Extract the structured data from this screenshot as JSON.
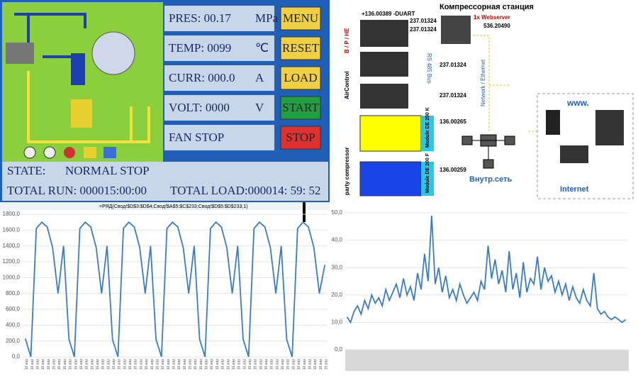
{
  "hmi": {
    "rows": [
      {
        "label": "PRES: 00.17",
        "unit": "MPa",
        "button": "MENU"
      },
      {
        "label": "TEMP: 0099",
        "unit": "℃",
        "button": "RESET"
      },
      {
        "label": "CURR: 000.0",
        "unit": "A",
        "button": "LOAD"
      },
      {
        "label": "VOLT: 0000",
        "unit": "V",
        "button": "START"
      },
      {
        "label": "FAN STOP",
        "button": "STOP"
      }
    ],
    "state_label": "STATE:",
    "state": "NORMAL STOP",
    "total_run": "TOTAL RUN: 000015:00:00",
    "total_load": "TOTAL LOAD:000014: 59: 52"
  },
  "diagram": {
    "title": "Компрессорная станция",
    "top_code": "+136.00389 -DUART",
    "codes": [
      "237.01324",
      "237.01324",
      "237.01324",
      "237.01324"
    ],
    "webserver": "1x Webserver",
    "webserver_code": "536.20490",
    "bus": "RS 485 Bus",
    "aircontrol": "AirControl",
    "bphe": "B / P / HE",
    "network": "Network / Ethernet",
    "modules": [
      {
        "code": "136.00265",
        "label": "Module DE 200 K"
      },
      {
        "code": "136.00259",
        "label": "Module DE 200 F"
      }
    ],
    "party": "party compressor",
    "lan": "Внутр.сеть",
    "www": "www.",
    "internet": "Internet"
  },
  "formula": "=РЯД(Свод!$D$3:$D$4;Свод!$A$5:$C$233;Свод!$D$5:$D$233;1)",
  "chart_data": [
    {
      "type": "line",
      "color": "#3a7cc4",
      "grid": true,
      "ylim": [
        0,
        1800
      ],
      "yticks": [
        {
          "value": 0,
          "label": "0,0"
        },
        {
          "value": 200,
          "label": "200,0"
        },
        {
          "value": 400,
          "label": "400,0"
        },
        {
          "value": 600,
          "label": "600,0"
        },
        {
          "value": 800,
          "label": "800,0"
        },
        {
          "value": 1000,
          "label": "1000,0"
        },
        {
          "value": 1200,
          "label": "1200,0"
        },
        {
          "value": 1400,
          "label": "1400,0"
        },
        {
          "value": 1600,
          "label": "1600,0"
        },
        {
          "value": 1800,
          "label": "1800,0"
        }
      ],
      "categories": [
        "16.апр",
        "16.апр",
        "16.апр",
        "16.апр",
        "16.апр",
        "16.апр",
        "16.апр",
        "16.апр",
        "16.апр",
        "16.апр",
        "16.апр",
        "16.апр",
        "16.апр",
        "16.апр",
        "16.апр",
        "16.апр",
        "16.апр",
        "16.апр",
        "16.апр",
        "16.апр",
        "16.апр",
        "16.апр",
        "16.апр",
        "16.апр",
        "16.апр",
        "16.апр",
        "16.апр",
        "16.апр",
        "16.апр",
        "16.апр",
        "16.апр",
        "16.апр",
        "16.апр",
        "16.апр",
        "16.апр",
        "16.апр",
        "16.апр",
        "16.апр",
        "16.апр",
        "16.апр",
        "16.апр",
        "16.апр",
        "16.апр",
        "16.апр",
        "16.апр",
        "16.апр",
        "16.апр",
        "16.апр",
        "16.апр",
        "16.апр",
        "16.апр",
        "16.апр",
        "16.апр",
        "16.апр",
        "16.апр",
        "16.апр"
      ],
      "values": [
        230,
        0,
        1620,
        1700,
        1640,
        1380,
        800,
        1400,
        220,
        0,
        1620,
        1700,
        1640,
        1380,
        800,
        1400,
        220,
        0,
        1620,
        1700,
        1640,
        1380,
        800,
        1400,
        220,
        0,
        1620,
        1700,
        1640,
        1380,
        800,
        1400,
        220,
        0,
        1620,
        1700,
        1640,
        1380,
        800,
        1400,
        220,
        0,
        1620,
        1700,
        1640,
        1380,
        800,
        1400,
        220,
        0,
        1620,
        1700,
        1640,
        1380,
        800,
        1160
      ]
    },
    {
      "type": "line",
      "color": "#3a7cc4",
      "grid": true,
      "ylim": [
        0,
        50
      ],
      "yticks": [
        {
          "value": 0,
          "label": "0,0"
        },
        {
          "value": 10,
          "label": "10,0"
        },
        {
          "value": 20,
          "label": "20,0"
        },
        {
          "value": 30,
          "label": "30,0"
        },
        {
          "value": 40,
          "label": "40,0"
        },
        {
          "value": 50,
          "label": "50,0"
        }
      ],
      "values": [
        12,
        10,
        14,
        16,
        13,
        18,
        15,
        20,
        17,
        19,
        16,
        22,
        18,
        21,
        24,
        19,
        26,
        20,
        23,
        18,
        28,
        22,
        35,
        25,
        49,
        24,
        30,
        21,
        27,
        19,
        22,
        18,
        24,
        20,
        17,
        19,
        21,
        18,
        25,
        22,
        38,
        26,
        33,
        24,
        29,
        21,
        36,
        22,
        28,
        19,
        32,
        21,
        26,
        24,
        34,
        22,
        30,
        25,
        27,
        21,
        25,
        20,
        24,
        18,
        23,
        19,
        17,
        22,
        18,
        16,
        28,
        15,
        13,
        14,
        12,
        11,
        12,
        11,
        10,
        11
      ]
    }
  ]
}
